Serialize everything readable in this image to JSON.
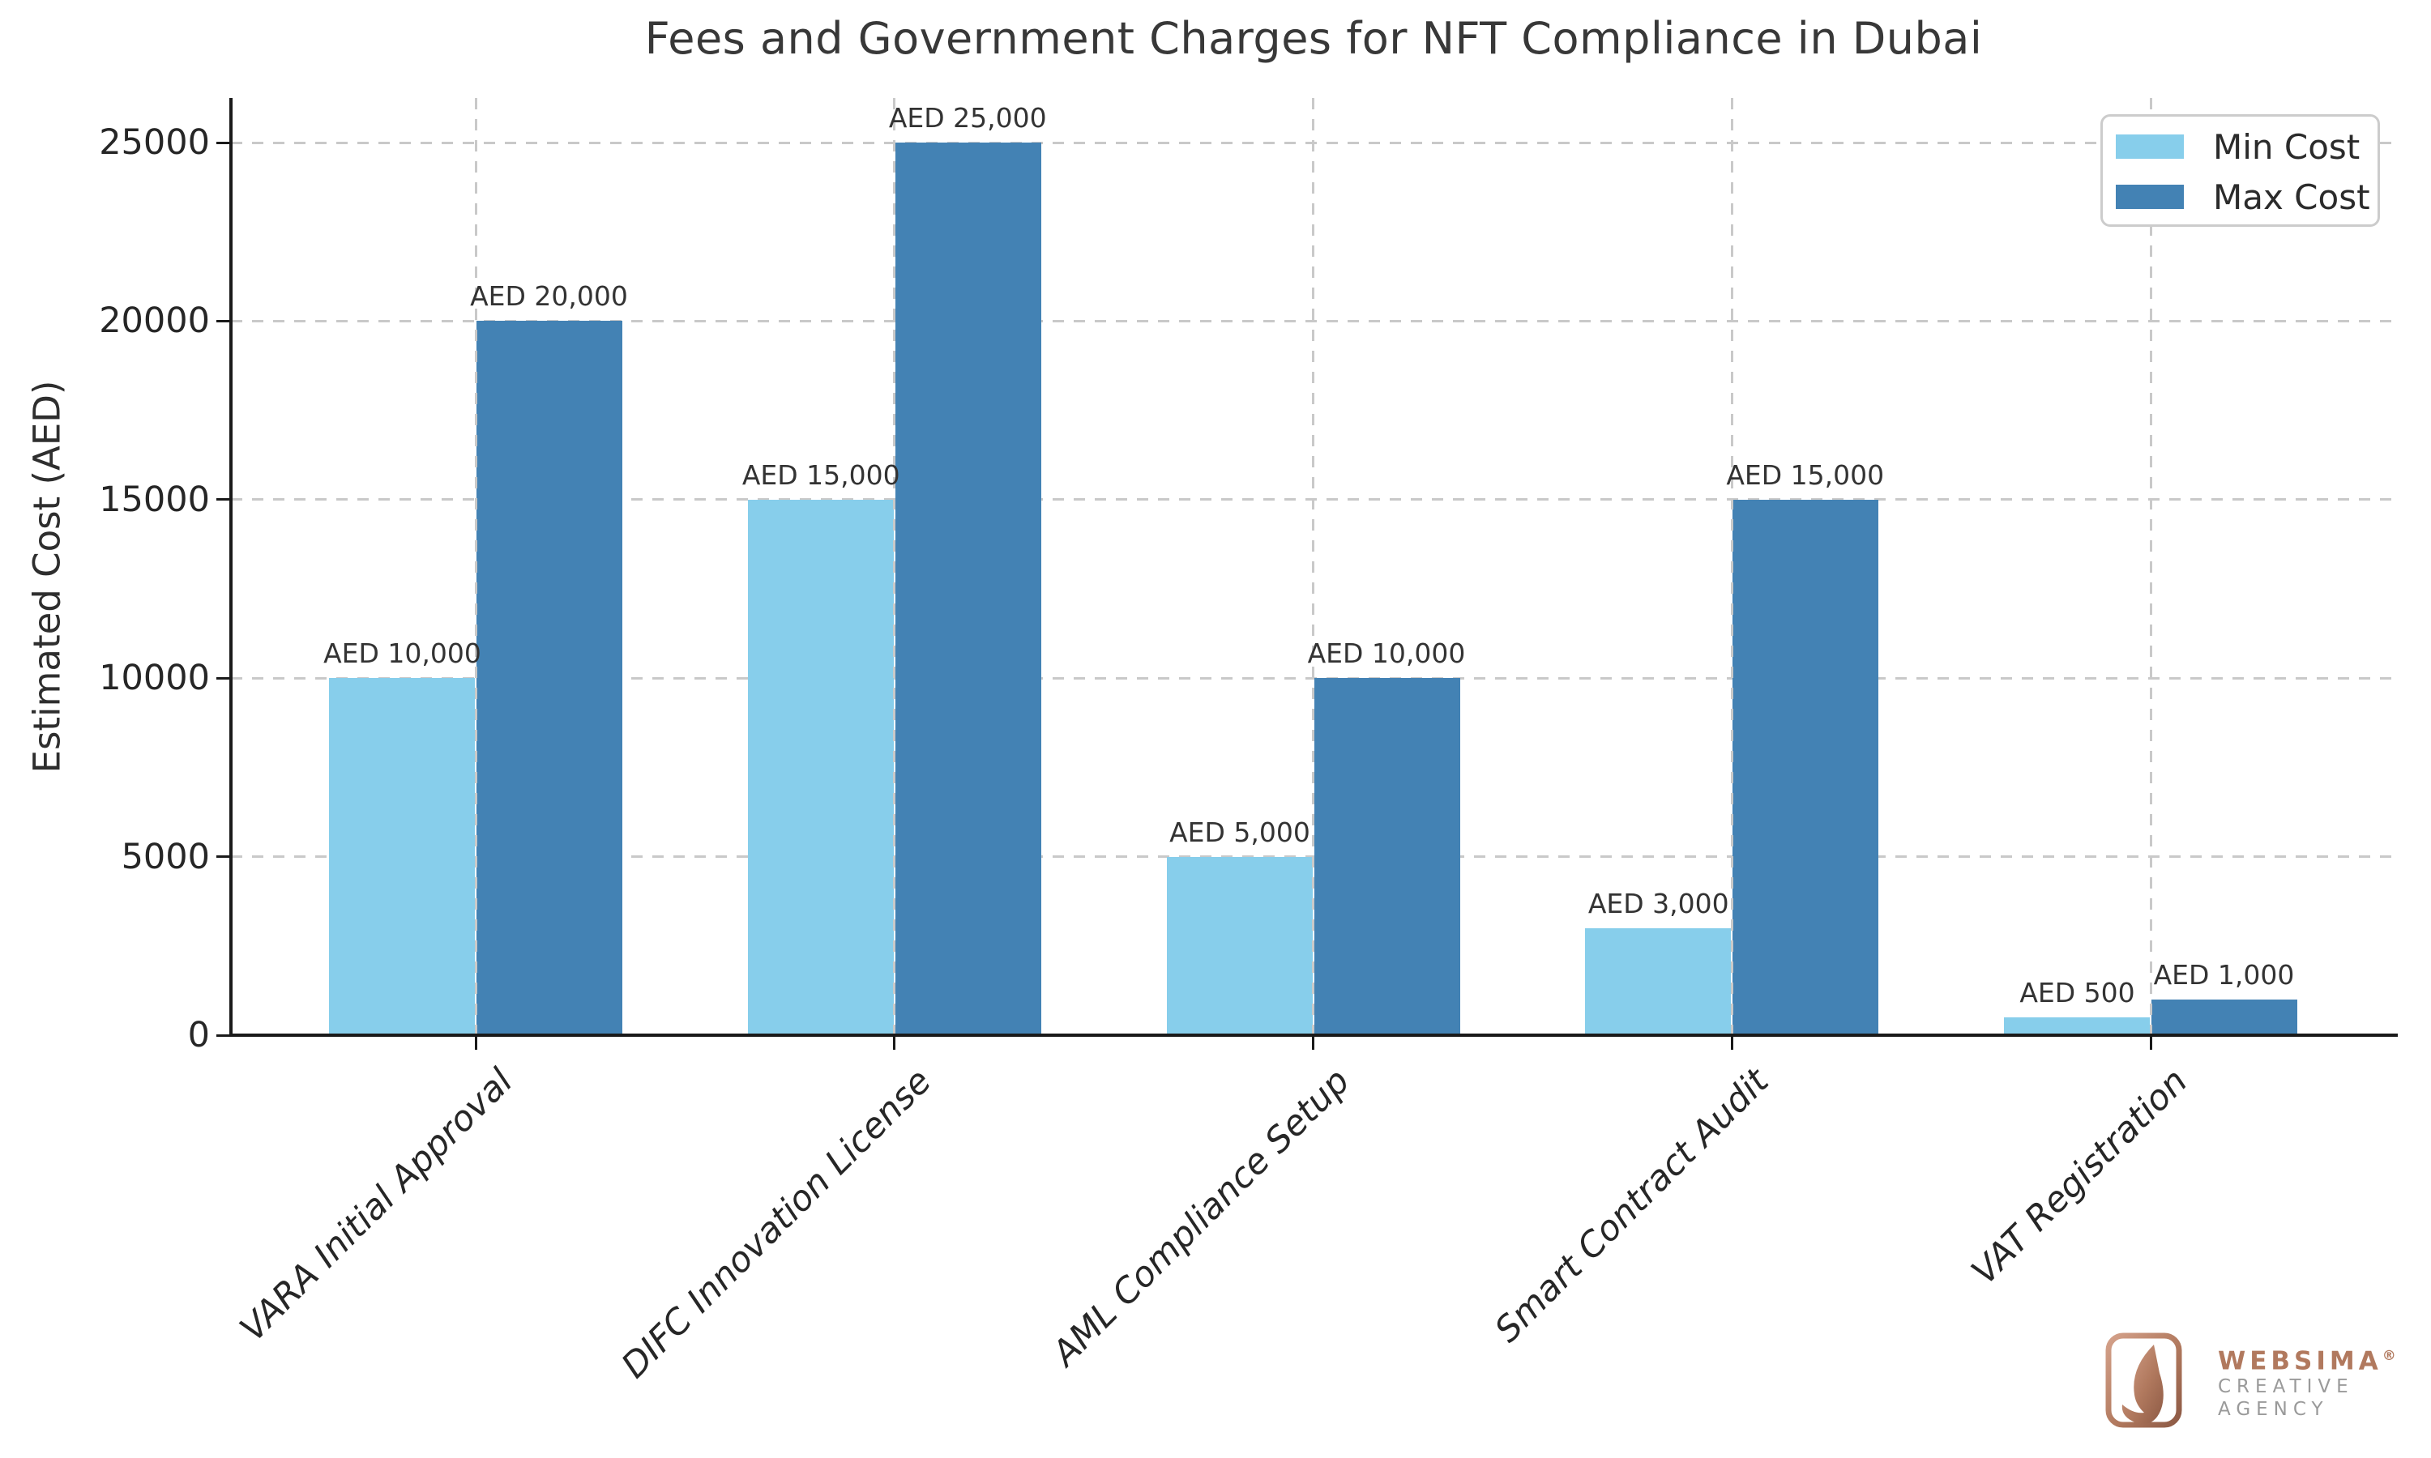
{
  "chart_data": {
    "type": "bar",
    "title": "Fees and Government Charges for NFT Compliance in Dubai",
    "xlabel": "",
    "ylabel": "Estimated Cost (AED)",
    "categories": [
      "VARA Initial Approval",
      "DIFC Innovation License",
      "AML Compliance Setup",
      "Smart Contract Audit",
      "VAT Registration"
    ],
    "series": [
      {
        "name": "Min Cost",
        "color": "#87CEEB",
        "values": [
          10000,
          15000,
          5000,
          3000,
          500
        ],
        "bar_labels": [
          "AED 10,000",
          "AED 15,000",
          "AED 5,000",
          "AED 3,000",
          "AED 500"
        ]
      },
      {
        "name": "Max Cost",
        "color": "#4382B4",
        "values": [
          20000,
          25000,
          10000,
          15000,
          1000
        ],
        "bar_labels": [
          "AED 20,000",
          "AED 25,000",
          "AED 10,000",
          "AED 15,000",
          "AED 1,000"
        ]
      }
    ],
    "yticks": [
      0,
      5000,
      10000,
      15000,
      20000,
      25000
    ],
    "ytick_labels": [
      "0",
      "5000",
      "10000",
      "15000",
      "20000",
      "25000"
    ],
    "ylim": [
      0,
      26250
    ],
    "grid": true,
    "gridline_style": "dashed",
    "legend_position": "upper right",
    "xtick_label_style": "italic rotated 45deg"
  },
  "legend": {
    "items": [
      {
        "label": "Min Cost",
        "color": "#87CEEB"
      },
      {
        "label": "Max Cost",
        "color": "#4382B4"
      }
    ]
  },
  "watermark": {
    "brand": "WEBSIMA",
    "registered_mark": "®",
    "subtitle_line1": "CREATIVE",
    "subtitle_line2": "AGENCY",
    "brand_color": "#b1795e",
    "subtitle_color": "#9a9a9a"
  },
  "colors": {
    "min_bar": "#87CEEB",
    "max_bar": "#4382B4",
    "grid": "#c9c9c9",
    "spine": "#1a1a1a",
    "text": "#2e2e2e"
  }
}
